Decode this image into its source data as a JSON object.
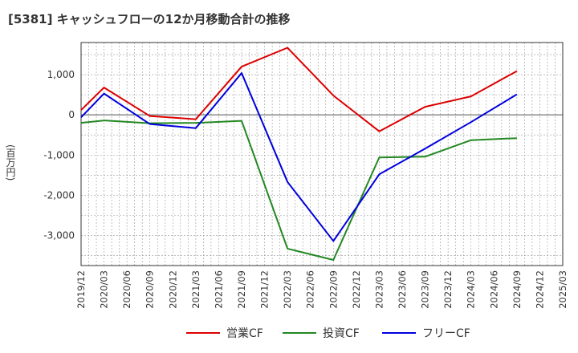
{
  "chart_data": {
    "type": "line",
    "title": "[5381]  キャッシュフローの12か月移動合計の推移",
    "ylabel": "(百万円)",
    "xlabel": "",
    "ylim": [
      -3750,
      1800
    ],
    "yticks": [
      1000,
      0,
      -1000,
      -2000,
      -3000
    ],
    "ytick_labels": [
      "1,000",
      "0",
      "-1,000",
      "-2,000",
      "-3,000"
    ],
    "categories": [
      "2019/12",
      "2020/03",
      "2020/06",
      "2020/09",
      "2020/12",
      "2021/03",
      "2021/06",
      "2021/09",
      "2021/12",
      "2022/03",
      "2022/06",
      "2022/09",
      "2022/12",
      "2023/03",
      "2023/06",
      "2023/09",
      "2023/12",
      "2024/03",
      "2024/06",
      "2024/09",
      "2024/12",
      "2025/03"
    ],
    "grid": true,
    "legend_position": "bottom",
    "series": [
      {
        "name": "営業CF",
        "color": "#dd0000",
        "values": [
          120,
          680,
          null,
          -30,
          null,
          -110,
          null,
          1200,
          null,
          1670,
          null,
          480,
          null,
          -410,
          null,
          200,
          null,
          460,
          null,
          1090,
          null,
          null
        ]
      },
      {
        "name": "投資CF",
        "color": "#228822",
        "values": [
          -200,
          -140,
          null,
          -210,
          null,
          -200,
          null,
          -150,
          null,
          -3330,
          null,
          -3610,
          null,
          -1060,
          null,
          -1040,
          null,
          -630,
          null,
          -580,
          null,
          null
        ]
      },
      {
        "name": "フリーCF",
        "color": "#0000dd",
        "values": [
          -60,
          530,
          null,
          -230,
          null,
          -330,
          null,
          1040,
          null,
          -1670,
          null,
          -3140,
          null,
          -1480,
          null,
          -840,
          null,
          -180,
          null,
          510,
          null,
          null
        ]
      }
    ]
  }
}
